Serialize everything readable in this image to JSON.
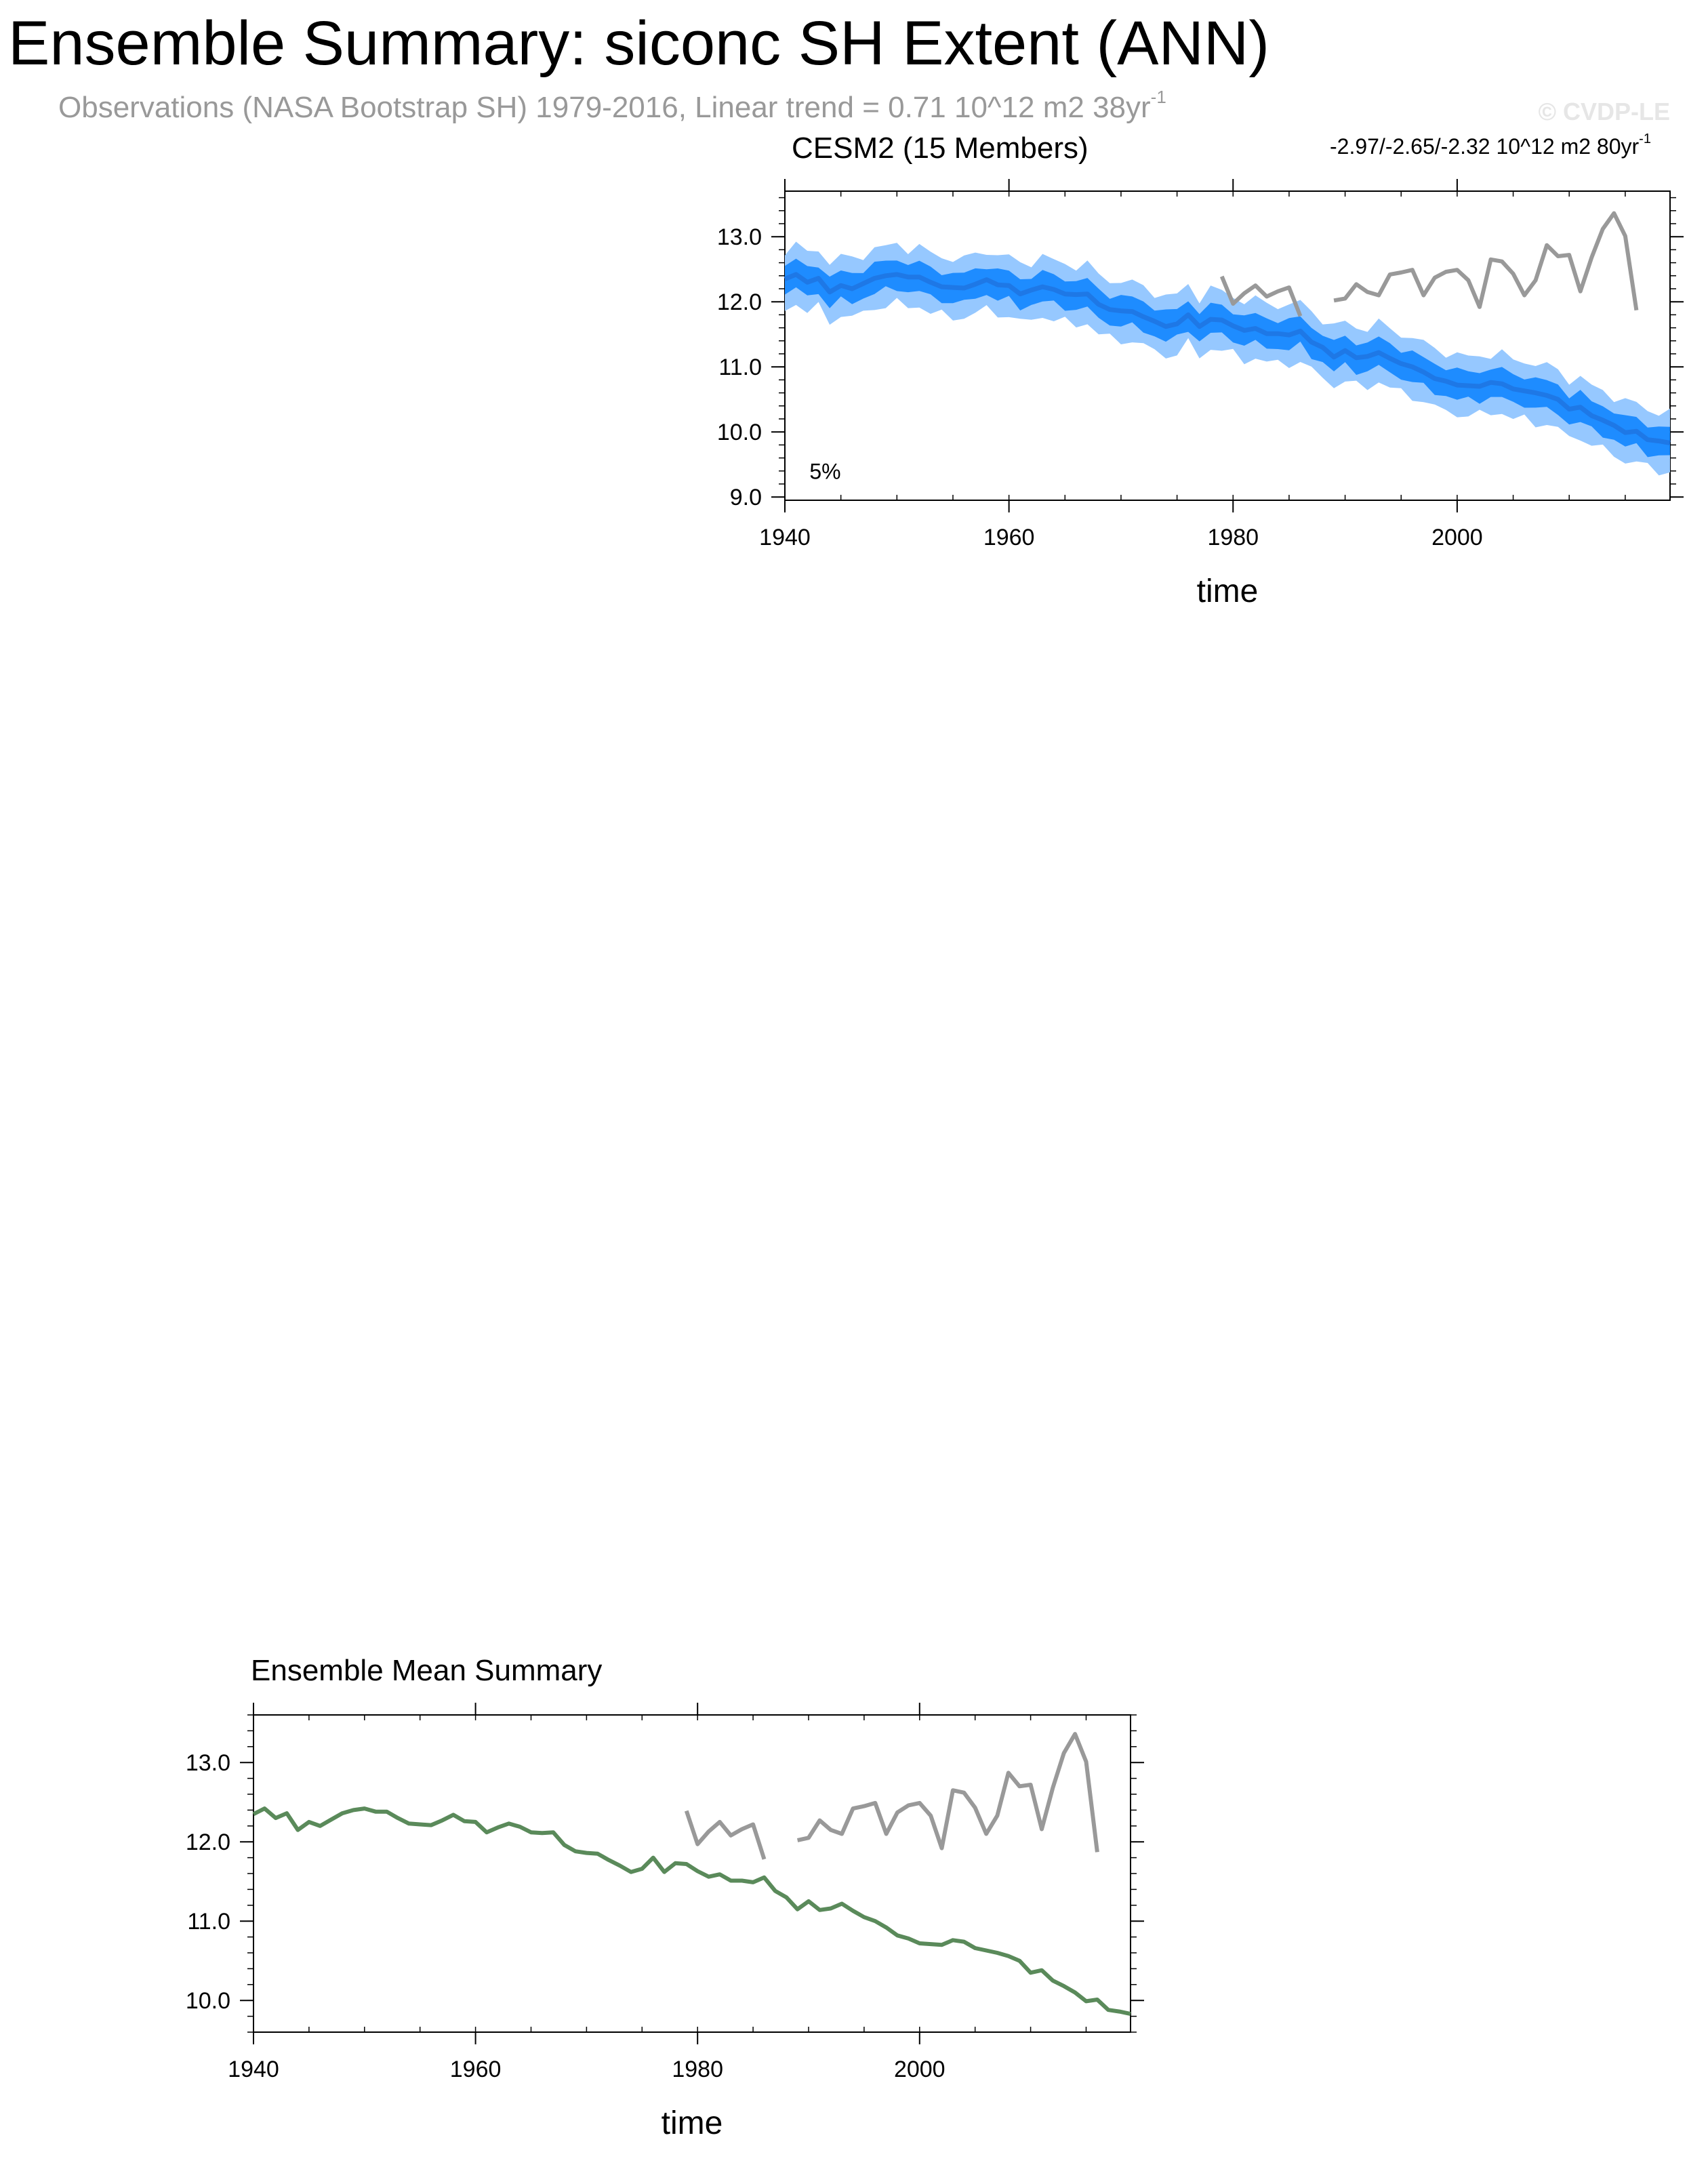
{
  "header": {
    "title": "Ensemble Summary: siconc SH Extent (ANN)",
    "obs_subtitle": "Observations (NASA Bootstrap SH) 1979-2016, Linear trend = 0.71 10^12 m2 38yr",
    "obs_subtitle_sup": "-1",
    "watermark": "© CVDP-LE"
  },
  "colors": {
    "model_series": "#5a8a5a",
    "obs_series": "#999999",
    "ensemble_mean": "#1e78e6",
    "inner_band": "#1e8cff",
    "outer_band": "#96c8ff"
  },
  "chart_data": [
    {
      "type": "area",
      "title": "CESM2 (15 Members)",
      "trend_text": "-2.97/-2.65/-2.32 10^12 m2 80yr",
      "trend_sup": "-1",
      "annotation": "5%",
      "xlabel": "time",
      "ylabel": "",
      "xlim": [
        1940,
        2019
      ],
      "ylim": [
        8.95,
        13.7
      ],
      "xticks": [
        1940,
        1960,
        1980,
        2000
      ],
      "yticks": [
        9.0,
        10.0,
        11.0,
        12.0,
        13.0
      ],
      "ytick_labels": [
        "9.0",
        "10.0",
        "11.0",
        "12.0",
        "13.0"
      ],
      "x": [
        1940,
        1941,
        1942,
        1943,
        1944,
        1945,
        1946,
        1947,
        1948,
        1949,
        1950,
        1951,
        1952,
        1953,
        1954,
        1955,
        1956,
        1957,
        1958,
        1959,
        1960,
        1961,
        1962,
        1963,
        1964,
        1965,
        1966,
        1967,
        1968,
        1969,
        1970,
        1971,
        1972,
        1973,
        1974,
        1975,
        1976,
        1977,
        1978,
        1979,
        1980,
        1981,
        1982,
        1983,
        1984,
        1985,
        1986,
        1987,
        1988,
        1989,
        1990,
        1991,
        1992,
        1993,
        1994,
        1995,
        1996,
        1997,
        1998,
        1999,
        2000,
        2001,
        2002,
        2003,
        2004,
        2005,
        2006,
        2007,
        2008,
        2009,
        2010,
        2011,
        2012,
        2013,
        2014,
        2015,
        2016,
        2017,
        2018,
        2019
      ],
      "series": [
        {
          "name": "ensemble mean",
          "values": [
            12.35,
            12.42,
            12.3,
            12.36,
            12.15,
            12.25,
            12.2,
            12.28,
            12.36,
            12.4,
            12.42,
            12.38,
            12.38,
            12.3,
            12.23,
            12.22,
            12.21,
            12.27,
            12.34,
            12.26,
            12.25,
            12.12,
            12.18,
            12.23,
            12.19,
            12.12,
            12.11,
            12.12,
            11.96,
            11.88,
            11.86,
            11.85,
            11.77,
            11.7,
            11.62,
            11.66,
            11.8,
            11.62,
            11.73,
            11.72,
            11.63,
            11.56,
            11.59,
            11.51,
            11.51,
            11.49,
            11.55,
            11.38,
            11.3,
            11.15,
            11.25,
            11.14,
            11.16,
            11.22,
            11.13,
            11.05,
            11.0,
            10.92,
            10.82,
            10.78,
            10.72,
            10.71,
            10.7,
            10.76,
            10.74,
            10.66,
            10.63,
            10.6,
            10.56,
            10.5,
            10.35,
            10.38,
            10.25,
            10.18,
            10.1,
            9.99,
            10.01,
            9.88,
            9.86,
            9.83
          ]
        },
        {
          "name": "observations",
          "x": [
            1979,
            1980,
            1981,
            1982,
            1983,
            1984,
            1985,
            1986,
            null,
            1989,
            1990,
            1991,
            1992,
            1993,
            1994,
            1995,
            1996,
            1997,
            1998,
            1999,
            2000,
            2001,
            2002,
            2003,
            2004,
            2005,
            2006,
            2007,
            2008,
            2009,
            2010,
            2011,
            2012,
            2013,
            2014,
            2015,
            2016
          ],
          "values": [
            12.39,
            11.97,
            12.13,
            12.25,
            12.08,
            12.16,
            12.22,
            11.78,
            null,
            12.02,
            12.05,
            12.27,
            12.15,
            12.1,
            12.42,
            12.45,
            12.49,
            12.1,
            12.37,
            12.46,
            12.49,
            12.33,
            11.92,
            12.65,
            12.62,
            12.43,
            12.1,
            12.33,
            12.87,
            12.7,
            12.72,
            12.16,
            12.68,
            13.12,
            13.36,
            13.01,
            11.87
          ]
        }
      ],
      "bands": [
        {
          "name": "25th-75th percentile",
          "half_width": 0.22
        },
        {
          "name": "min-max",
          "half_width": 0.45
        }
      ]
    },
    {
      "type": "line",
      "title": "Ensemble Mean Summary",
      "xlabel": "time",
      "ylabel": "",
      "xlim": [
        1940,
        2019
      ],
      "ylim": [
        9.6,
        13.6
      ],
      "xticks": [
        1940,
        1960,
        1980,
        2000
      ],
      "yticks": [
        10.0,
        11.0,
        12.0,
        13.0
      ],
      "ytick_labels": [
        "10.0",
        "11.0",
        "12.0",
        "13.0"
      ]
    }
  ]
}
